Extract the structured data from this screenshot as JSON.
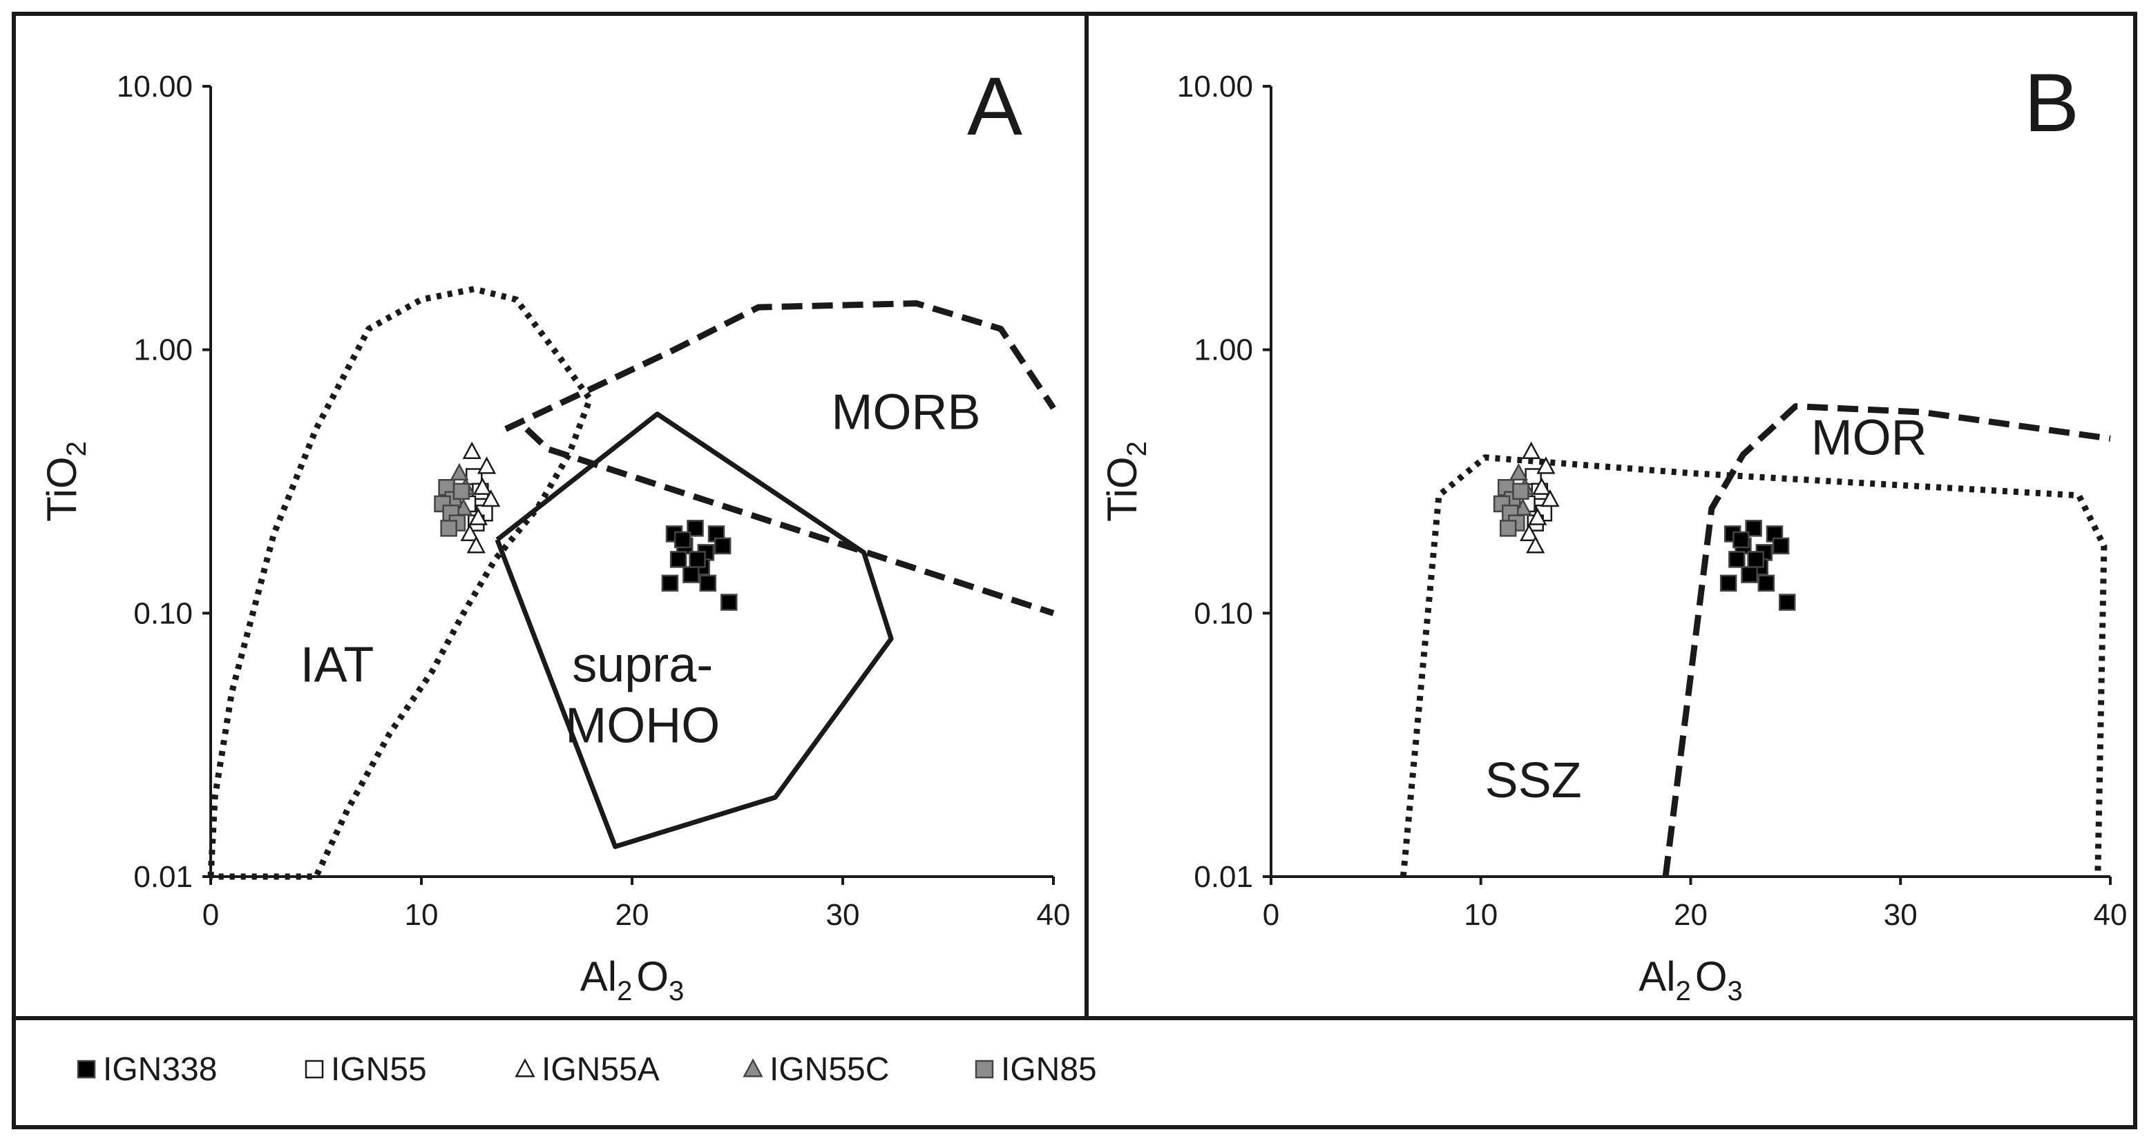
{
  "colors": {
    "ink": "#1a1a1a",
    "background": "#ffffff",
    "filled_black": "#000000",
    "open_white": "#ffffff",
    "gray_marker": "#8c8c8c"
  },
  "legend": [
    {
      "label": "IGN338",
      "marker": "square",
      "fill": "#000000"
    },
    {
      "label": "IGN55",
      "marker": "square",
      "fill": "#ffffff"
    },
    {
      "label": "IGN55A",
      "marker": "triangle",
      "fill": "#ffffff"
    },
    {
      "label": "IGN55C",
      "marker": "triangle",
      "fill": "#8c8c8c"
    },
    {
      "label": "IGN85",
      "marker": "square",
      "fill": "#8c8c8c"
    }
  ],
  "chart_data": [
    {
      "type": "scatter",
      "panel_label": "A",
      "title": "",
      "xlabel_parts": [
        "Al",
        "2",
        "O",
        "3"
      ],
      "ylabel_parts": [
        "TiO",
        "2"
      ],
      "xlim": [
        0,
        40
      ],
      "ylim": [
        0.01,
        10
      ],
      "yscale": "log",
      "xticks": [
        "0",
        "10",
        "20",
        "30",
        "40"
      ],
      "yticks": [
        "0.01",
        "0.10",
        "1.00",
        "10.00"
      ],
      "field_labels": [
        {
          "lines": [
            "IAT"
          ],
          "at": [
            6,
            0.055
          ]
        },
        {
          "lines": [
            "MORB"
          ],
          "at": [
            33,
            0.5
          ]
        },
        {
          "lines": [
            "supra-",
            "MOHO"
          ],
          "at": [
            20.5,
            0.055
          ]
        }
      ],
      "boundaries": [
        {
          "name": "IAT field",
          "style": "dotted",
          "points": [
            [
              0,
              0.01
            ],
            [
              0.2,
              0.02
            ],
            [
              1,
              0.05
            ],
            [
              3,
              0.2
            ],
            [
              5,
              0.5
            ],
            [
              7.5,
              1.2
            ],
            [
              10,
              1.55
            ],
            [
              12.5,
              1.7
            ],
            [
              14.5,
              1.55
            ],
            [
              16.5,
              0.95
            ],
            [
              18,
              0.65
            ],
            [
              17,
              0.4
            ],
            [
              15.5,
              0.25
            ],
            [
              13.5,
              0.16
            ],
            [
              12,
              0.1
            ],
            [
              10.5,
              0.06
            ],
            [
              8.5,
              0.035
            ],
            [
              6.5,
              0.018
            ],
            [
              5,
              0.01
            ],
            [
              0,
              0.01
            ]
          ]
        },
        {
          "name": "MORB field",
          "style": "dashed",
          "points": [
            [
              14,
              0.5
            ],
            [
              22,
              1.0
            ],
            [
              26,
              1.45
            ],
            [
              33.5,
              1.5
            ],
            [
              37.5,
              1.2
            ],
            [
              40,
              0.6
            ]
          ]
        },
        {
          "name": "MORB lower boundary",
          "style": "dashed",
          "points": [
            [
              15,
              0.5
            ],
            [
              16,
              0.42
            ],
            [
              40,
              0.1
            ]
          ]
        },
        {
          "name": "supra-MOHO field",
          "style": "solid",
          "points": [
            [
              13.6,
              0.19
            ],
            [
              21.2,
              0.57
            ],
            [
              31,
              0.17
            ],
            [
              32.3,
              0.08
            ],
            [
              26.8,
              0.02
            ],
            [
              19.2,
              0.013
            ],
            [
              13.6,
              0.19
            ]
          ]
        }
      ],
      "series": [
        {
          "name": "IGN338",
          "marker": "square",
          "fill": "#000000",
          "points": [
            [
              22,
              0.2
            ],
            [
              23,
              0.21
            ],
            [
              24,
              0.2
            ],
            [
              22.5,
              0.18
            ],
            [
              23.5,
              0.17
            ],
            [
              24.3,
              0.18
            ],
            [
              22.2,
              0.16
            ],
            [
              23.3,
              0.15
            ],
            [
              22.8,
              0.14
            ],
            [
              21.8,
              0.13
            ],
            [
              23.6,
              0.13
            ],
            [
              24.6,
              0.11
            ],
            [
              22.4,
              0.19
            ],
            [
              23.1,
              0.16
            ]
          ]
        },
        {
          "name": "IGN55",
          "marker": "square",
          "fill": "#ffffff",
          "points": [
            [
              12.5,
              0.33
            ],
            [
              12.8,
              0.29
            ],
            [
              12.2,
              0.26
            ],
            [
              13.0,
              0.24
            ],
            [
              12.6,
              0.22
            ]
          ]
        },
        {
          "name": "IGN55A",
          "marker": "triangle",
          "fill": "#ffffff",
          "points": [
            [
              12.4,
              0.41
            ],
            [
              13.1,
              0.36
            ],
            [
              12.9,
              0.3
            ],
            [
              13.3,
              0.27
            ],
            [
              12.7,
              0.23
            ],
            [
              12.3,
              0.2
            ],
            [
              12.6,
              0.18
            ]
          ]
        },
        {
          "name": "IGN55C",
          "marker": "triangle",
          "fill": "#8c8c8c",
          "points": [
            [
              11.8,
              0.34
            ],
            [
              12.1,
              0.3
            ],
            [
              11.6,
              0.27
            ],
            [
              12.0,
              0.25
            ]
          ]
        },
        {
          "name": "IGN85",
          "marker": "square",
          "fill": "#8c8c8c",
          "points": [
            [
              11.2,
              0.3
            ],
            [
              11.5,
              0.27
            ],
            [
              11.0,
              0.26
            ],
            [
              11.4,
              0.24
            ],
            [
              11.7,
              0.22
            ],
            [
              11.3,
              0.21
            ],
            [
              11.9,
              0.29
            ]
          ]
        }
      ]
    },
    {
      "type": "scatter",
      "panel_label": "B",
      "title": "",
      "xlabel_parts": [
        "Al",
        "2",
        "O",
        "3"
      ],
      "ylabel_parts": [
        "TiO",
        "2"
      ],
      "xlim": [
        0,
        40
      ],
      "ylim": [
        0.01,
        10
      ],
      "yscale": "log",
      "xticks": [
        "0",
        "10",
        "20",
        "30",
        "40"
      ],
      "yticks": [
        "0.01",
        "0.10",
        "1.00",
        "10.00"
      ],
      "field_labels": [
        {
          "lines": [
            "SSZ"
          ],
          "at": [
            12.5,
            0.02
          ]
        },
        {
          "lines": [
            "MOR"
          ],
          "at": [
            28.5,
            0.4
          ]
        }
      ],
      "boundaries": [
        {
          "name": "SSZ field",
          "style": "dotted",
          "points": [
            [
              6.3,
              0.01
            ],
            [
              8,
              0.28
            ],
            [
              10.2,
              0.39
            ],
            [
              20,
              0.34
            ],
            [
              38.5,
              0.28
            ],
            [
              39.7,
              0.18
            ],
            [
              39.4,
              0.01
            ]
          ]
        },
        {
          "name": "MOR field",
          "style": "dashed",
          "points": [
            [
              18.8,
              0.01
            ],
            [
              21,
              0.25
            ],
            [
              22.5,
              0.4
            ],
            [
              25,
              0.61
            ],
            [
              31,
              0.58
            ],
            [
              40,
              0.46
            ]
          ]
        }
      ],
      "series": [
        {
          "name": "IGN338",
          "marker": "square",
          "fill": "#000000",
          "points": [
            [
              22,
              0.2
            ],
            [
              23,
              0.21
            ],
            [
              24,
              0.2
            ],
            [
              22.5,
              0.18
            ],
            [
              23.5,
              0.17
            ],
            [
              24.3,
              0.18
            ],
            [
              22.2,
              0.16
            ],
            [
              23.3,
              0.15
            ],
            [
              22.8,
              0.14
            ],
            [
              21.8,
              0.13
            ],
            [
              23.6,
              0.13
            ],
            [
              24.6,
              0.11
            ],
            [
              22.4,
              0.19
            ],
            [
              23.1,
              0.16
            ]
          ]
        },
        {
          "name": "IGN55",
          "marker": "square",
          "fill": "#ffffff",
          "points": [
            [
              12.5,
              0.33
            ],
            [
              12.8,
              0.29
            ],
            [
              12.2,
              0.26
            ],
            [
              13.0,
              0.24
            ],
            [
              12.6,
              0.22
            ]
          ]
        },
        {
          "name": "IGN55A",
          "marker": "triangle",
          "fill": "#ffffff",
          "points": [
            [
              12.4,
              0.41
            ],
            [
              13.1,
              0.36
            ],
            [
              12.9,
              0.3
            ],
            [
              13.3,
              0.27
            ],
            [
              12.7,
              0.23
            ],
            [
              12.3,
              0.2
            ],
            [
              12.6,
              0.18
            ]
          ]
        },
        {
          "name": "IGN55C",
          "marker": "triangle",
          "fill": "#8c8c8c",
          "points": [
            [
              11.8,
              0.34
            ],
            [
              12.1,
              0.3
            ],
            [
              11.6,
              0.27
            ],
            [
              12.0,
              0.25
            ]
          ]
        },
        {
          "name": "IGN85",
          "marker": "square",
          "fill": "#8c8c8c",
          "points": [
            [
              11.2,
              0.3
            ],
            [
              11.5,
              0.27
            ],
            [
              11.0,
              0.26
            ],
            [
              11.4,
              0.24
            ],
            [
              11.7,
              0.22
            ],
            [
              11.3,
              0.21
            ],
            [
              11.9,
              0.29
            ]
          ]
        }
      ]
    }
  ]
}
